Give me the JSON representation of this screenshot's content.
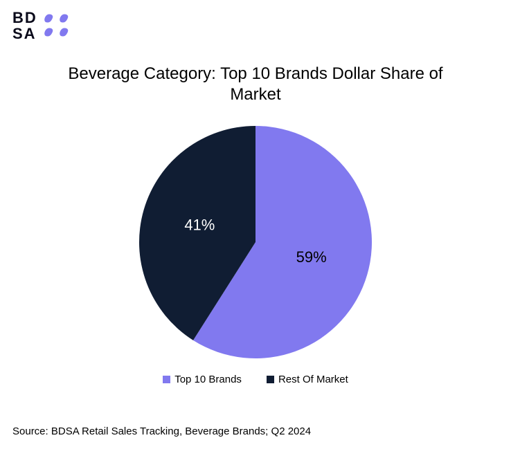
{
  "logo": {
    "line1": "BD",
    "line2": "SA",
    "mark_color": "#8179ef"
  },
  "chart": {
    "type": "pie",
    "title": "Beverage Category: Top 10 Brands Dollar Share of Market",
    "background_color": "#ffffff",
    "radius": 168,
    "title_fontsize": 24,
    "slices": [
      {
        "name": "Top 10 Brands",
        "value": 59,
        "label": "59%",
        "color": "#8179ef",
        "label_color": "#000000"
      },
      {
        "name": "Rest Of Market",
        "value": 41,
        "label": "41%",
        "color": "#101d33",
        "label_color": "#ffffff"
      }
    ],
    "legend": [
      {
        "swatch": "#8179ef",
        "label": "Top 10 Brands"
      },
      {
        "swatch": "#101d33",
        "label": "Rest Of Market"
      }
    ],
    "source": "Source: BDSA Retail Sales Tracking, Beverage Brands; Q2 2024"
  }
}
